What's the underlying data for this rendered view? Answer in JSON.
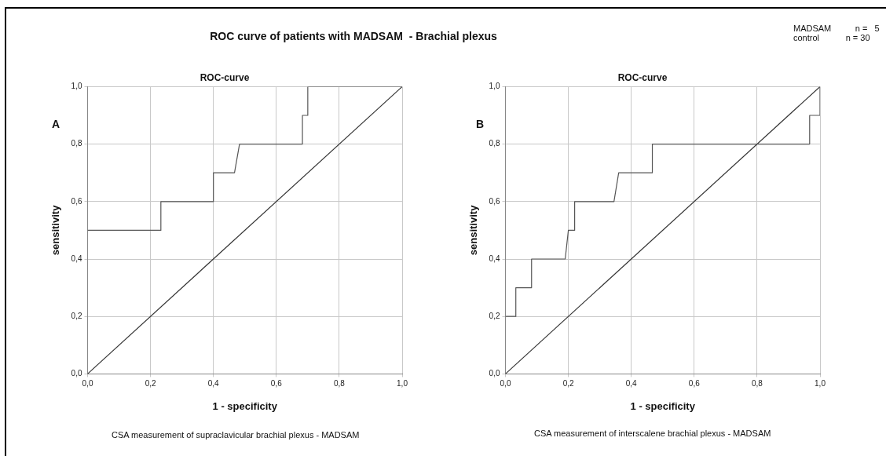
{
  "chart_data": [
    {
      "type": "line",
      "title": "ROC-curve",
      "xlabel": "1 - specificity",
      "ylabel": "sensitivity",
      "annotations": [
        "ROC curve of patients with MADSAM  - Brachial plexus",
        "MADSAM          n =   5\ncontrol           n = 30",
        "A",
        "CSA measurement of supraclavicular brachial plexus - MADSAM"
      ],
      "series": [
        {
          "color": "#555555",
          "x": [
            0,
            0.233,
            0.233,
            0.4,
            0.4,
            0.467,
            0.483,
            0.683,
            0.683,
            0.7,
            0.7,
            1
          ],
          "values": [
            0.5,
            0.5,
            0.6,
            0.6,
            0.7,
            0.7,
            0.8,
            0.8,
            0.9,
            0.9,
            1,
            1
          ]
        },
        {
          "color": "#333333",
          "x": [
            0,
            1
          ],
          "values": [
            0,
            1
          ]
        }
      ],
      "xlim": [
        0,
        1
      ],
      "ylim": [
        0,
        1
      ],
      "xticks": [
        {
          "value": 0,
          "label": "0,0"
        },
        {
          "value": 0.2,
          "label": "0,2"
        },
        {
          "value": 0.4,
          "label": "0,4"
        },
        {
          "value": 0.6,
          "label": "0,6"
        },
        {
          "value": 0.8,
          "label": "0,8"
        },
        {
          "value": 1,
          "label": "1,0"
        }
      ],
      "yticks": [
        {
          "value": 0,
          "label": "0,0"
        },
        {
          "value": 0.2,
          "label": "0,2"
        },
        {
          "value": 0.4,
          "label": "0,4"
        },
        {
          "value": 0.6,
          "label": "0,6"
        },
        {
          "value": 0.8,
          "label": "0,8"
        },
        {
          "value": 1,
          "label": "1,0"
        }
      ],
      "grid": true,
      "legend": false,
      "marker": "none",
      "line_style": "solid"
    },
    {
      "type": "line",
      "title": "ROC-curve",
      "xlabel": "1 - specificity",
      "ylabel": "sensitivity",
      "annotations": [
        "B",
        "CSA measurement of interscalene brachial plexus - MADSAM"
      ],
      "series": [
        {
          "color": "#555555",
          "x": [
            0,
            0.033,
            0.033,
            0.083,
            0.083,
            0.19,
            0.2,
            0.22,
            0.22,
            0.345,
            0.36,
            0.467,
            0.467,
            0.967,
            0.967,
            1,
            1
          ],
          "values": [
            0.2,
            0.2,
            0.3,
            0.3,
            0.4,
            0.4,
            0.5,
            0.5,
            0.6,
            0.6,
            0.7,
            0.7,
            0.8,
            0.8,
            0.9,
            0.9,
            1
          ]
        },
        {
          "color": "#333333",
          "x": [
            0,
            1
          ],
          "values": [
            0,
            1
          ]
        }
      ],
      "xlim": [
        0,
        1
      ],
      "ylim": [
        0,
        1
      ],
      "xticks": [
        {
          "value": 0,
          "label": "0,0"
        },
        {
          "value": 0.2,
          "label": "0,2"
        },
        {
          "value": 0.4,
          "label": "0,4"
        },
        {
          "value": 0.6,
          "label": "0,6"
        },
        {
          "value": 0.8,
          "label": "0,8"
        },
        {
          "value": 1,
          "label": "1,0"
        }
      ],
      "yticks": [
        {
          "value": 0,
          "label": "0,0"
        },
        {
          "value": 0.2,
          "label": "0,2"
        },
        {
          "value": 0.4,
          "label": "0,4"
        },
        {
          "value": 0.6,
          "label": "0,6"
        },
        {
          "value": 0.8,
          "label": "0,8"
        },
        {
          "value": 1,
          "label": "1,0"
        }
      ],
      "grid": true,
      "legend": false,
      "marker": "none",
      "line_style": "solid"
    }
  ]
}
